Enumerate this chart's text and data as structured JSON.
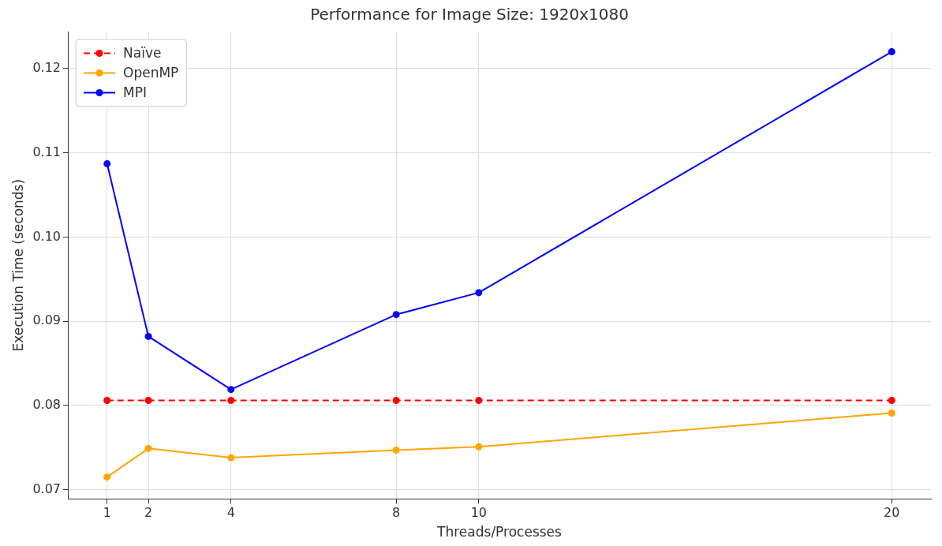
{
  "chart_data": {
    "type": "line",
    "title": "Performance for Image Size: 1920x1080",
    "xlabel": "Threads/Processes",
    "ylabel": "Execution Time (seconds)",
    "x": [
      1,
      2,
      4,
      8,
      10,
      20
    ],
    "series": [
      {
        "name": "Naïve",
        "color": "#ff0000",
        "line_style": "dashed",
        "values": [
          0.0806,
          0.0806,
          0.0806,
          0.0806,
          0.0806,
          0.0806
        ]
      },
      {
        "name": "OpenMP",
        "color": "#ffa500",
        "values": [
          0.0715,
          0.0749,
          0.0738,
          0.0747,
          0.0751,
          0.0791
        ]
      },
      {
        "name": "MPI",
        "color": "#0000ff",
        "values": [
          0.1087,
          0.0882,
          0.0819,
          0.0908,
          0.0934,
          0.122
        ]
      }
    ],
    "xlim": [
      0.05,
      20.95
    ],
    "xticks": [
      1,
      2,
      4,
      8,
      10,
      20
    ],
    "ylim": [
      0.0689,
      0.1244
    ],
    "yticks": [
      {
        "value": 0.07,
        "label": "0.07"
      },
      {
        "value": 0.08,
        "label": "0.08"
      },
      {
        "value": 0.09,
        "label": "0.09"
      },
      {
        "value": 0.1,
        "label": "0.10"
      },
      {
        "value": 0.11,
        "label": "0.11"
      },
      {
        "value": 0.12,
        "label": "0.12"
      }
    ],
    "grid": true,
    "legend": "top left",
    "marker": "circle",
    "line_style": "solid"
  }
}
